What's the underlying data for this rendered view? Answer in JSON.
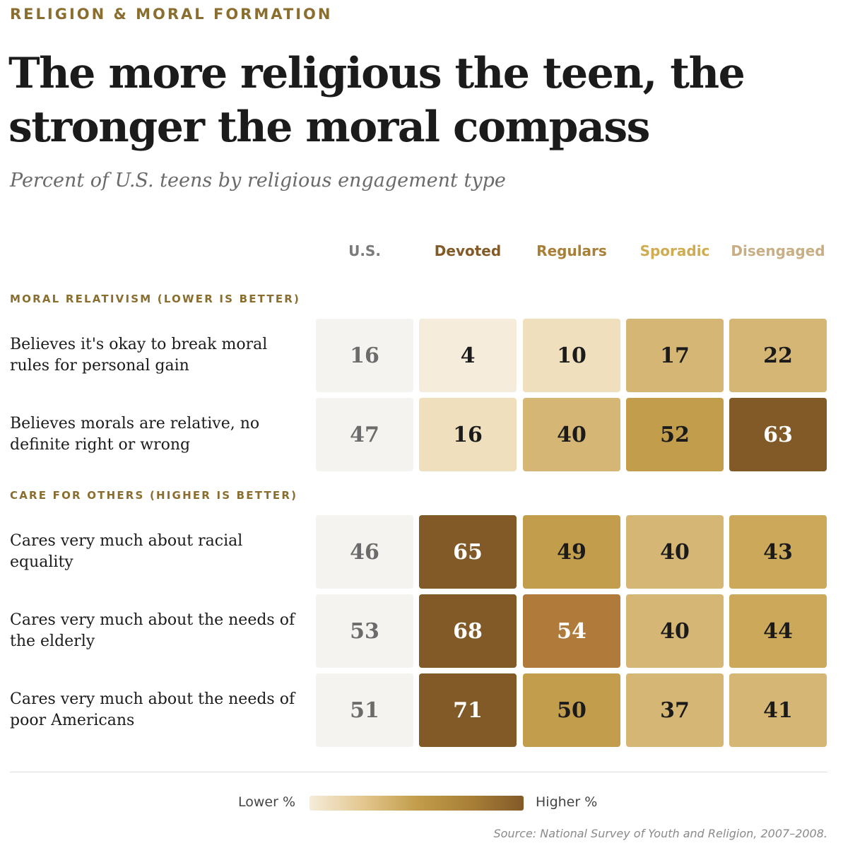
{
  "kicker": "RELIGION & MORAL FORMATION",
  "title": "The more religious the teen, the stronger the moral compass",
  "subtitle": "Percent of U.S. teens by religious engagement type",
  "source": "Source: National Survey of Youth and Religion, 2007–2008.",
  "legend": {
    "low": "Lower %",
    "high": "Higher %"
  },
  "colors": {
    "us_cell_bg": "#f4f3ef",
    "us_text": "#6b6b6b",
    "dark_text": "#1b1b1b",
    "light_text": "#ffffff",
    "accent": "#8a6e2f",
    "scale": [
      "#f5ecdb",
      "#efdfbd",
      "#e3c78e",
      "#d6b675",
      "#cca95a",
      "#c29d4b",
      "#b07b3a",
      "#825a28"
    ]
  },
  "chart_data": {
    "type": "heatmap",
    "columns": [
      {
        "name": "U.S.",
        "color": "#7a7a7a"
      },
      {
        "name": "Devoted",
        "color": "#825a28"
      },
      {
        "name": "Regulars",
        "color": "#a97f38"
      },
      {
        "name": "Sporadic",
        "color": "#cfac52"
      },
      {
        "name": "Disengaged",
        "color": "#c8ae82"
      }
    ],
    "sections": [
      {
        "label": "MORAL RELATIVISM (LOWER IS BETTER)",
        "rows": [
          {
            "label": "Believes it's okay to break moral rules for personal gain",
            "values": [
              16,
              4,
              10,
              17,
              22
            ]
          },
          {
            "label": "Believes morals are relative, no definite right or wrong",
            "values": [
              47,
              16,
              40,
              52,
              63
            ]
          }
        ]
      },
      {
        "label": "CARE FOR OTHERS (HIGHER IS BETTER)",
        "rows": [
          {
            "label": "Cares very much about racial equality",
            "values": [
              46,
              65,
              49,
              40,
              43
            ]
          },
          {
            "label": "Cares very much about the needs of the elderly",
            "values": [
              53,
              68,
              54,
              40,
              44
            ]
          },
          {
            "label": "Cares very much about the needs of poor Americans",
            "values": [
              51,
              71,
              50,
              37,
              41
            ]
          }
        ]
      }
    ]
  }
}
